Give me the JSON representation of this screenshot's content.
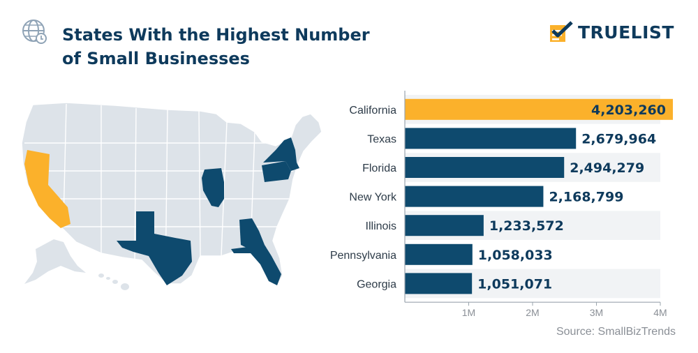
{
  "header": {
    "title_line1": "States With the Highest Number",
    "title_line2": "of Small Businesses"
  },
  "logo": {
    "text": "TRUELIST"
  },
  "source": "Source: SmallBizTrends",
  "colors": {
    "primary": "#0e3a5c",
    "highlight": "#fbb12b",
    "map_land": "#dde3e9",
    "row_band": "#f1f3f5"
  },
  "map": {
    "highlighted_states": [
      {
        "state": "California",
        "color": "#fbb12b"
      },
      {
        "state": "Texas",
        "color": "#0e4a6e"
      },
      {
        "state": "Florida",
        "color": "#0e4a6e"
      },
      {
        "state": "New York",
        "color": "#0e4a6e"
      },
      {
        "state": "Illinois",
        "color": "#0e4a6e"
      },
      {
        "state": "Pennsylvania",
        "color": "#0e4a6e"
      },
      {
        "state": "Georgia",
        "color": "#0e4a6e"
      }
    ]
  },
  "chart_data": {
    "type": "bar",
    "orientation": "horizontal",
    "categories": [
      "California",
      "Texas",
      "Florida",
      "New York",
      "Illinois",
      "Pennsylvania",
      "Georgia"
    ],
    "values": [
      4203260,
      2679964,
      2494279,
      2168799,
      1233572,
      1058033,
      1051071
    ],
    "value_labels": [
      "4,203,260",
      "2,679,964",
      "2,494,279",
      "2,168,799",
      "1,233,572",
      "1,058,033",
      "1,051,071"
    ],
    "highlight_index": 0,
    "xlim": [
      0,
      4000000
    ],
    "x_ticks": [
      {
        "value": 1000000,
        "label": "1M"
      },
      {
        "value": 2000000,
        "label": "2M"
      },
      {
        "value": 3000000,
        "label": "3M"
      },
      {
        "value": 4000000,
        "label": "4M"
      }
    ],
    "grid": false
  }
}
